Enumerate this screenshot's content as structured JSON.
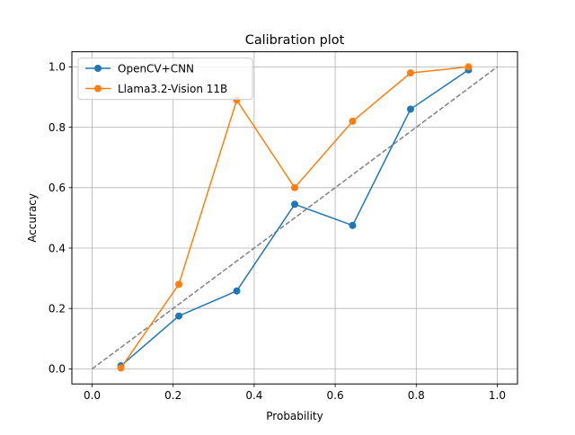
{
  "chart_data": {
    "type": "line",
    "title": "Calibration plot",
    "xlabel": "Probability",
    "ylabel": "Accuracy",
    "xlim": [
      -0.05,
      1.05
    ],
    "ylim": [
      -0.05,
      1.05
    ],
    "grid": true,
    "legend_placement": "top-left",
    "x_ticks": [
      0.0,
      0.2,
      0.4,
      0.6,
      0.8,
      1.0
    ],
    "x_tick_labels": [
      "0.0",
      "0.2",
      "0.4",
      "0.6",
      "0.8",
      "1.0"
    ],
    "y_ticks": [
      0.0,
      0.2,
      0.4,
      0.6,
      0.8,
      1.0
    ],
    "y_tick_labels": [
      "0.0",
      "0.2",
      "0.4",
      "0.6",
      "0.8",
      "1.0"
    ],
    "reference_line": {
      "x": [
        0,
        1
      ],
      "y": [
        0,
        1
      ],
      "color": "#808080",
      "style": "dashed"
    },
    "series": [
      {
        "name": "OpenCV+CNN",
        "color": "#1f77b4",
        "x": [
          0.071,
          0.214,
          0.357,
          0.5,
          0.643,
          0.786,
          0.929
        ],
        "y": [
          0.01,
          0.175,
          0.258,
          0.545,
          0.475,
          0.86,
          0.99
        ]
      },
      {
        "name": "Llama3.2-Vision 11B",
        "color": "#ff7f0e",
        "x": [
          0.071,
          0.214,
          0.357,
          0.5,
          0.643,
          0.786,
          0.929
        ],
        "y": [
          0.003,
          0.28,
          0.89,
          0.6,
          0.82,
          0.98,
          1.0
        ]
      }
    ]
  }
}
